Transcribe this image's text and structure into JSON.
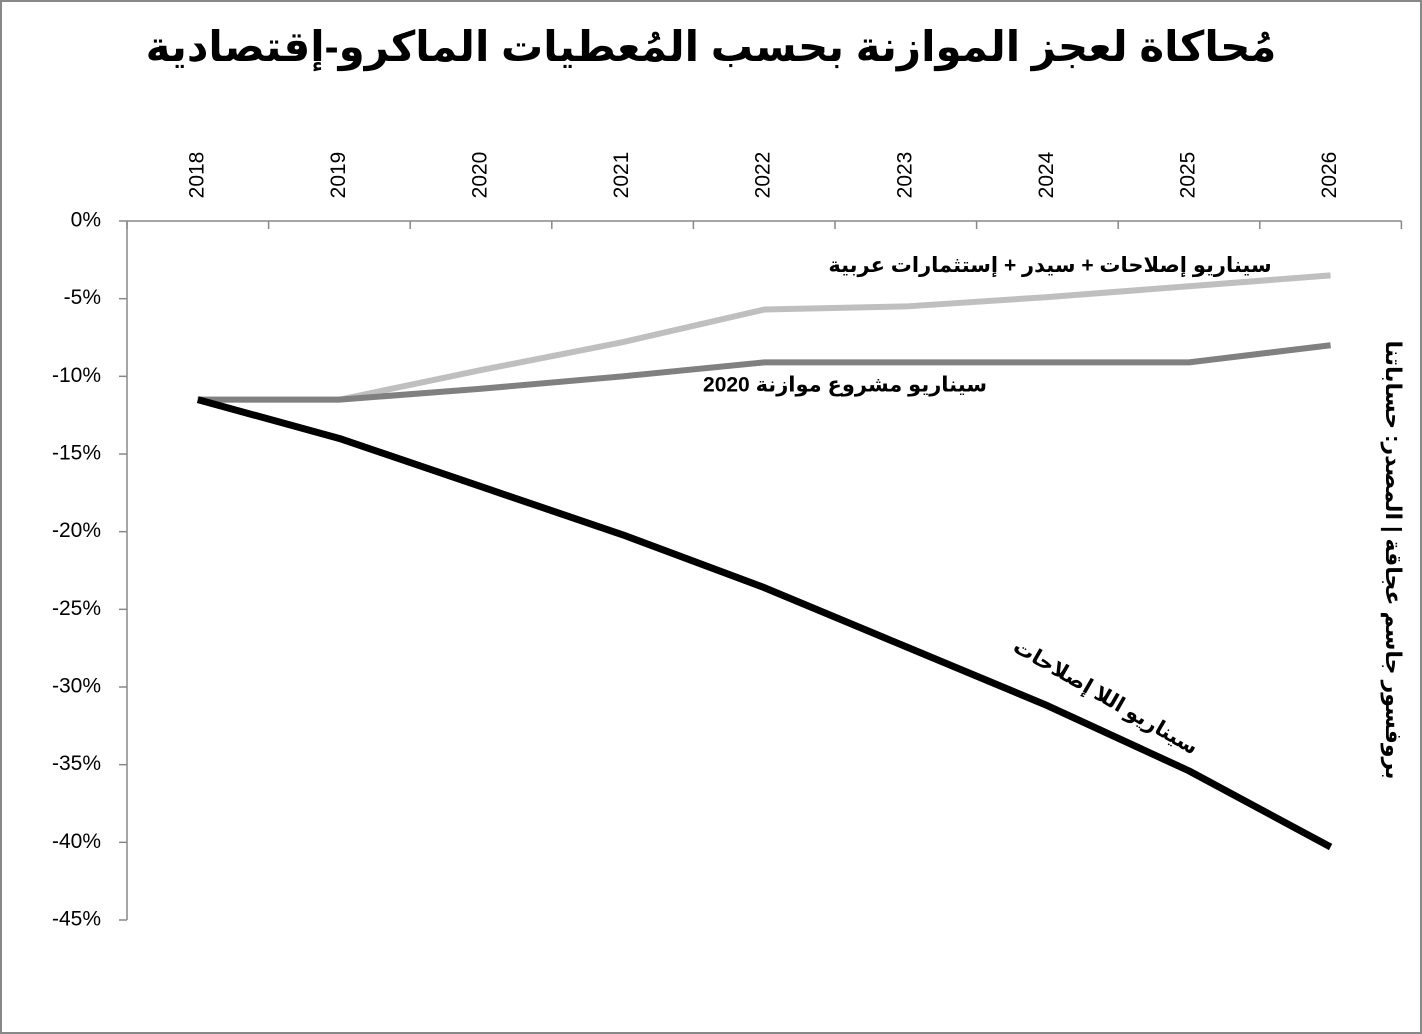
{
  "chart_data": {
    "type": "line",
    "title": "مُحاكاة لعجز الموازنة بحسب المُعطيات الماكرو-إقتصادية",
    "source": "بروفسور جاسم عجاقة | المصدر: حساباتنا",
    "categories": [
      "2018",
      "2019",
      "2020",
      "2021",
      "2022",
      "2023",
      "2024",
      "2025",
      "2026"
    ],
    "series": [
      {
        "name": "سيناريو إصلاحات + سيدر + إستثمارات عربية",
        "color": "#bfbfbf",
        "values": [
          -11.5,
          -11.5,
          -9.6,
          -7.8,
          -5.7,
          -5.5,
          -4.9,
          -4.2,
          -3.5
        ]
      },
      {
        "name": "سيناريو مشروع موازنة 2020",
        "color": "#808080",
        "values": [
          -11.5,
          -11.5,
          -10.8,
          -10.0,
          -9.1,
          -9.1,
          -9.1,
          -9.1,
          -8.0
        ]
      },
      {
        "name": "سيناريو اللا إصلاحات",
        "color": "#000000",
        "values": [
          -11.5,
          -14.0,
          -17.1,
          -20.2,
          -23.6,
          -27.4,
          -31.2,
          -35.4,
          -40.3
        ]
      }
    ],
    "ylim": [
      -45,
      0
    ],
    "yticks": [
      {
        "value": 0,
        "label": "0%"
      },
      {
        "value": -5,
        "label": "-5%"
      },
      {
        "value": -10,
        "label": "-10%"
      },
      {
        "value": -15,
        "label": "-15%"
      },
      {
        "value": -20,
        "label": "-20%"
      },
      {
        "value": -25,
        "label": "-25%"
      },
      {
        "value": -30,
        "label": "-30%"
      },
      {
        "value": -35,
        "label": "-35%"
      },
      {
        "value": -40,
        "label": "-40%"
      },
      {
        "value": -45,
        "label": "-45%"
      }
    ],
    "grid": false
  }
}
